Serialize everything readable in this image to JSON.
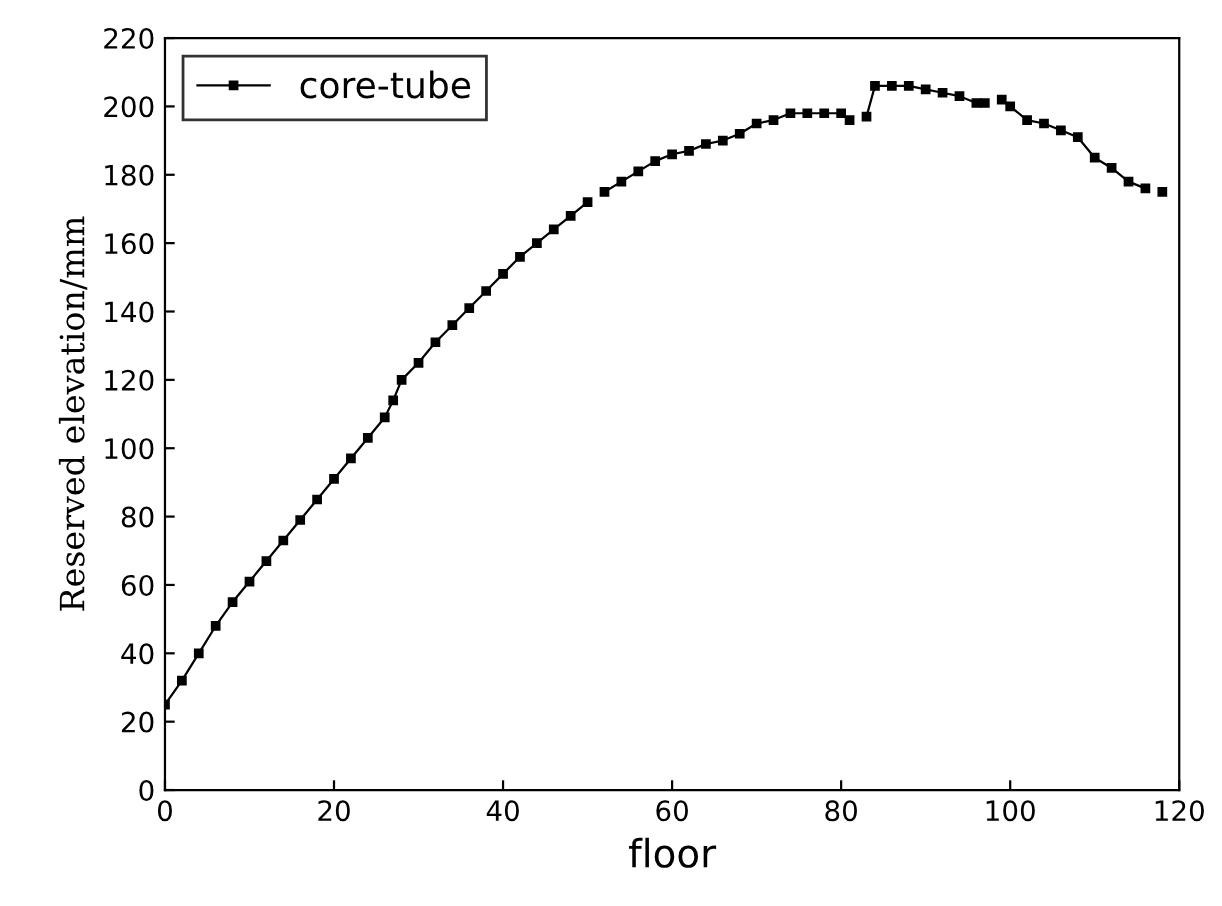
{
  "chart_data": {
    "type": "line",
    "xlabel": "floor",
    "ylabel": "Reserved elevation/mm",
    "xlim": [
      0,
      120
    ],
    "ylim": [
      0,
      220
    ],
    "xticks": [
      0,
      20,
      40,
      60,
      80,
      100,
      120
    ],
    "yticks": [
      0,
      20,
      40,
      60,
      80,
      100,
      120,
      140,
      160,
      180,
      200,
      220
    ],
    "marker": "square",
    "line_style": "solid",
    "legend": "top left",
    "grid": false,
    "series": [
      {
        "name": "core-tube",
        "color": "#000000",
        "x": [
          0,
          2,
          4,
          6,
          8,
          10,
          12,
          14,
          16,
          18,
          20,
          22,
          24,
          26,
          27,
          28,
          30,
          32,
          34,
          36,
          38,
          40,
          42,
          44,
          46,
          48,
          50,
          51,
          52,
          54,
          56,
          58,
          60,
          62,
          64,
          66,
          68,
          70,
          72,
          74,
          76,
          78,
          80,
          81,
          82,
          83,
          84,
          86,
          88,
          90,
          92,
          94,
          96,
          97,
          98,
          99,
          100,
          102,
          104,
          106,
          108,
          110,
          112,
          114,
          116,
          117,
          118
        ],
        "values": [
          25,
          32,
          40,
          48,
          55,
          61,
          67,
          73,
          79,
          85,
          91,
          97,
          103,
          109,
          114,
          120,
          125,
          131,
          136,
          141,
          146,
          151,
          156,
          160,
          164,
          168,
          172,
          null,
          175,
          178,
          181,
          184,
          186,
          187,
          189,
          190,
          192,
          195,
          196,
          198,
          198,
          198,
          198,
          196,
          null,
          197,
          206,
          206,
          206,
          205,
          204,
          203,
          201,
          201,
          null,
          202,
          200,
          196,
          195,
          193,
          191,
          185,
          182,
          178,
          176,
          null,
          175
        ]
      }
    ]
  }
}
